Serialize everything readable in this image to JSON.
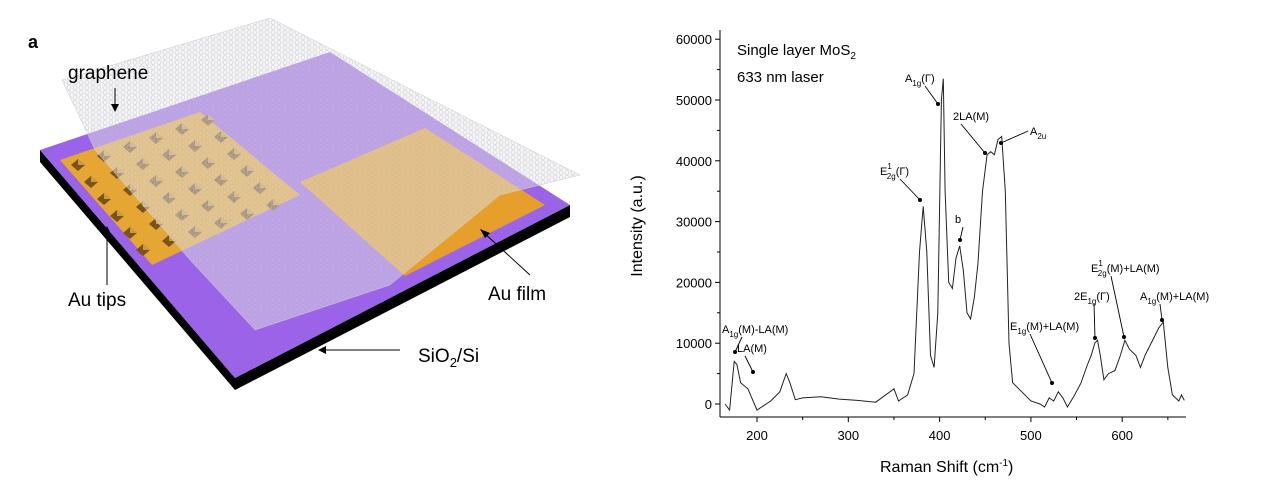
{
  "panel_a": {
    "panel_letter": "a",
    "labels": {
      "graphene": "graphene",
      "au_tips": "Au tips",
      "au_film": "Au film",
      "substrate": "SiO",
      "substrate_sub": "2",
      "substrate_tail": "/Si"
    },
    "colors": {
      "substrate": "#9a63e8",
      "substrate_edge": "#000000",
      "gold": "#e6a634",
      "graphene": "#d8d8d8"
    }
  },
  "chart_data": {
    "type": "line",
    "title": "",
    "legend_text": {
      "line1": "Single layer MoS",
      "line1_sub": "2",
      "line2": "633 nm laser"
    },
    "xlabel": "Raman Shift (cm",
    "xlabel_sup": "-1",
    "xlabel_tail": ")",
    "ylabel": "Intensity (a.u.)",
    "xlim": [
      160,
      670
    ],
    "ylim": [
      -2000,
      60000
    ],
    "xticks": [
      200,
      300,
      400,
      500,
      600
    ],
    "yticks": [
      0,
      10000,
      20000,
      30000,
      40000,
      50000,
      60000
    ],
    "grid": false,
    "series": [
      {
        "name": "Single layer MoS2",
        "x": [
          165,
          170,
          175,
          178,
          182,
          190,
          200,
          205,
          215,
          225,
          232,
          236,
          242,
          250,
          270,
          290,
          310,
          330,
          350,
          355,
          365,
          372,
          378,
          382,
          386,
          390,
          394,
          398,
          402,
          404,
          406,
          410,
          414,
          418,
          422,
          426,
          430,
          434,
          438,
          442,
          447,
          452,
          456,
          460,
          464,
          468,
          472,
          476,
          480,
          490,
          500,
          510,
          515,
          520,
          525,
          530,
          535,
          540,
          548,
          555,
          562,
          566,
          570,
          573,
          576,
          580,
          585,
          592,
          598,
          603,
          608,
          615,
          620,
          625,
          635,
          640,
          645,
          650,
          655,
          662,
          665,
          668
        ],
        "y": [
          0,
          -1000,
          7000,
          6500,
          3500,
          2500,
          -1000,
          -500,
          500,
          2000,
          5000,
          3500,
          700,
          1000,
          1200,
          800,
          600,
          300,
          2500,
          500,
          1500,
          5000,
          25000,
          32500,
          25000,
          8000,
          6000,
          15000,
          50000,
          53500,
          35000,
          20000,
          19000,
          24000,
          26000,
          22000,
          15000,
          14000,
          17500,
          23000,
          35000,
          41000,
          41500,
          41000,
          43500,
          44000,
          35000,
          10000,
          3500,
          2000,
          500,
          0,
          -500,
          1000,
          500,
          2000,
          1000,
          -500,
          1500,
          3500,
          6500,
          8000,
          10000,
          10500,
          8000,
          4000,
          5000,
          5500,
          8000,
          10500,
          9000,
          8000,
          6000,
          8000,
          11000,
          12500,
          13500,
          6000,
          1500,
          500,
          1500,
          600
        ]
      }
    ],
    "annotations": [
      {
        "base": "A",
        "sub": "1g",
        "tail": "(M)-LA(M)",
        "peak_x": 175
      },
      {
        "base": "LA(M)",
        "sub": "",
        "tail": "",
        "peak_x": 232
      },
      {
        "base": "E",
        "sup": "1",
        "sub": "2g",
        "tail": "(Γ)",
        "peak_x": 382
      },
      {
        "base": "A",
        "sub": "1g",
        "tail": "(Γ)",
        "peak_x": 404
      },
      {
        "base": "b",
        "sub": "",
        "tail": "",
        "peak_x": 422
      },
      {
        "base": "2LA(M)",
        "sub": "",
        "tail": "",
        "peak_x": 454
      },
      {
        "base": "A",
        "sub": "2u",
        "tail": "",
        "peak_x": 468
      },
      {
        "base": "E",
        "sub": "1g",
        "tail": "(M)+LA(M)",
        "peak_x": 526
      },
      {
        "base": "2E",
        "sub": "1g",
        "tail": "(Γ)",
        "peak_x": 572
      },
      {
        "base": "E",
        "sup": "1",
        "sub": "2g",
        "tail": "(M)+LA(M)",
        "peak_x": 603
      },
      {
        "base": "A",
        "sub": "1g",
        "tail": "(M)+LA(M)",
        "peak_x": 644
      }
    ]
  }
}
